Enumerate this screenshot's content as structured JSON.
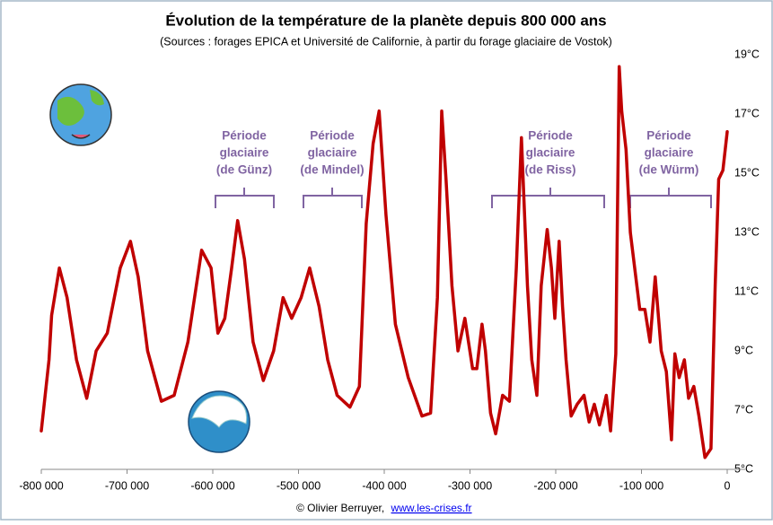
{
  "chart_data": {
    "type": "line",
    "title": "Évolution de la température de la planète depuis 800 000 ans",
    "subtitle": "(Sources : forages EPICA et Université de Californie, à partir du forage glaciaire de Vostok)",
    "credit": {
      "text": "© Olivier Berruyer,",
      "link": "www.les-crises.fr"
    },
    "annotations": [
      {
        "lines": [
          "Période",
          "glaciaire",
          "(de Günz)"
        ]
      },
      {
        "lines": [
          "Période",
          "glaciaire",
          "(de Mindel)"
        ]
      },
      {
        "lines": [
          "Période",
          "glaciaire",
          "(de Riss)"
        ]
      },
      {
        "lines": [
          "Période",
          "glaciaire",
          "(de Würm)"
        ]
      }
    ],
    "xlim": [
      -800000,
      0
    ],
    "xticks": [
      {
        "value": -800000,
        "label": "-800 000"
      },
      {
        "value": -700000,
        "label": "-700 000"
      },
      {
        "value": -600000,
        "label": "-600 000"
      },
      {
        "value": -500000,
        "label": "-500 000"
      },
      {
        "value": -400000,
        "label": "-400 000"
      },
      {
        "value": -300000,
        "label": "-300 000"
      },
      {
        "value": -200000,
        "label": "-200 000"
      },
      {
        "value": -100000,
        "label": "-100 000"
      },
      0
    ],
    "ylim": [
      5,
      19
    ],
    "yticks": [
      {
        "value": 5,
        "label": "5°C"
      },
      {
        "value": 7,
        "label": "7°C"
      },
      {
        "value": 9,
        "label": "9°C"
      },
      {
        "value": 11,
        "label": "11°C"
      },
      {
        "value": 13,
        "label": "13°C"
      },
      {
        "value": 15,
        "label": "15°C"
      },
      {
        "value": 17,
        "label": "17°C"
      },
      {
        "value": 19,
        "label": "19°C"
      }
    ],
    "grid": false,
    "series": [
      {
        "color": "#c00000",
        "x": [
          -800000,
          -791000,
          -788000,
          -779000,
          -770000,
          -759000,
          -747000,
          -736000,
          -723000,
          -708000,
          -696000,
          -687000,
          -676000,
          -660000,
          -645000,
          -629000,
          -613000,
          -602000,
          -594000,
          -586000,
          -578000,
          -571000,
          -563000,
          -553000,
          -541000,
          -529000,
          -518000,
          -508000,
          -497000,
          -487000,
          -476000,
          -466000,
          -455000,
          -440000,
          -429000,
          -421000,
          -413000,
          -406000,
          -398000,
          -387000,
          -372000,
          -356000,
          -346000,
          -338000,
          -333000,
          -328000,
          -321000,
          -314000,
          -306000,
          -297000,
          -292000,
          -286000,
          -282000,
          -276000,
          -270000,
          -262000,
          -254000,
          -246000,
          -240000,
          -233000,
          -228000,
          -222000,
          -217000,
          -210000,
          -205000,
          -201000,
          -196000,
          -192000,
          -188000,
          -182000,
          -175000,
          -167000,
          -161000,
          -155000,
          -149000,
          -141000,
          -136000,
          -130000,
          -126000,
          -123000,
          -118000,
          -113000,
          -102000,
          -96000,
          -90000,
          -84000,
          -77000,
          -71000,
          -65000,
          -61000,
          -56000,
          -50000,
          -45000,
          -39000,
          -33000,
          -26000,
          -19000,
          -14000,
          -10000,
          -5000,
          0
        ],
        "values": [
          6.3,
          8.7,
          10.2,
          11.8,
          10.8,
          8.7,
          7.4,
          9.0,
          9.6,
          11.8,
          12.7,
          11.5,
          9.0,
          7.3,
          7.5,
          9.3,
          12.4,
          11.8,
          9.6,
          10.1,
          11.8,
          13.4,
          12.1,
          9.3,
          8.0,
          9.0,
          10.8,
          10.1,
          10.8,
          11.8,
          10.5,
          8.7,
          7.5,
          7.1,
          7.8,
          13.3,
          16.0,
          17.1,
          13.6,
          9.9,
          8.1,
          6.8,
          6.9,
          10.8,
          17.1,
          14.8,
          11.2,
          9.0,
          10.1,
          8.4,
          8.4,
          9.9,
          9.0,
          6.9,
          6.2,
          7.5,
          7.3,
          11.8,
          16.2,
          11.2,
          8.7,
          7.5,
          11.2,
          13.1,
          11.8,
          10.1,
          12.7,
          10.5,
          8.7,
          6.8,
          7.2,
          7.5,
          6.6,
          7.2,
          6.5,
          7.5,
          6.3,
          8.9,
          18.6,
          17.1,
          15.8,
          13.0,
          10.4,
          10.4,
          9.3,
          11.5,
          9.0,
          8.3,
          6.0,
          8.9,
          8.1,
          8.7,
          7.4,
          7.8,
          6.8,
          5.4,
          5.7,
          11.2,
          14.8,
          15.1,
          16.4
        ]
      }
    ]
  }
}
